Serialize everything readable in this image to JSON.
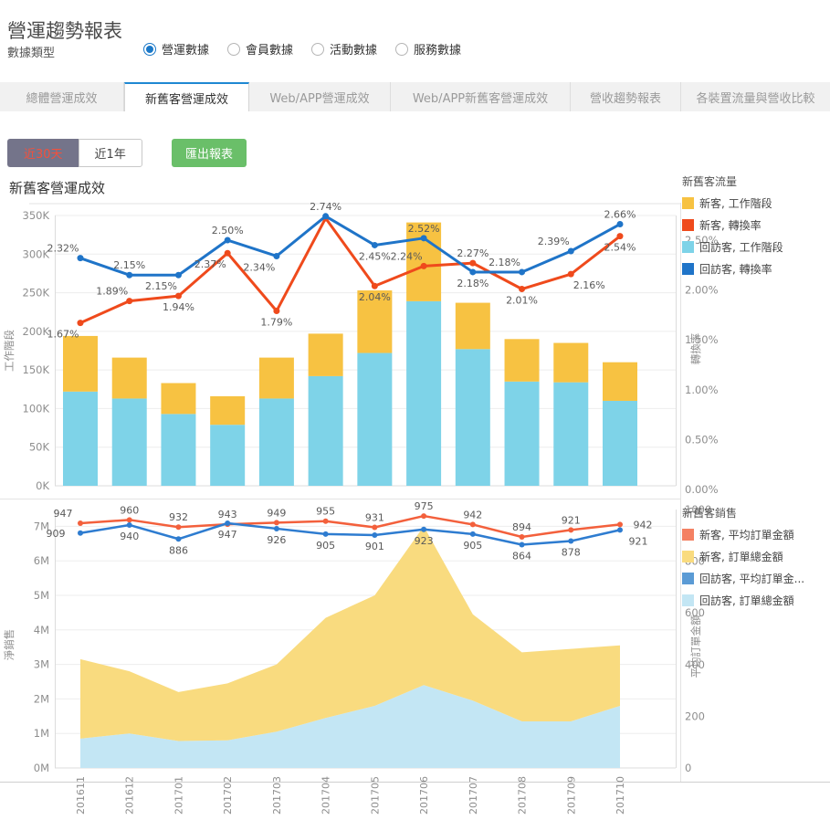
{
  "page": {
    "title": "營運趨勢報表"
  },
  "filter": {
    "label": "數據類型",
    "options": [
      {
        "label": "營運數據",
        "selected": true
      },
      {
        "label": "會員數據",
        "selected": false
      },
      {
        "label": "活動數據",
        "selected": false
      },
      {
        "label": "服務數據",
        "selected": false
      }
    ]
  },
  "tabs": [
    {
      "label": "總體營運成效",
      "active": false
    },
    {
      "label": "新舊客營運成效",
      "active": true
    },
    {
      "label": "Web/APP營運成效",
      "active": false
    },
    {
      "label": "Web/APP新舊客營運成效",
      "active": false
    },
    {
      "label": "營收趨勢報表",
      "active": false
    },
    {
      "label": "各裝置流量與營收比較",
      "active": false
    }
  ],
  "toolbar": {
    "ranges": [
      {
        "label": "近30天",
        "active": true
      },
      {
        "label": "近1年",
        "active": false
      }
    ],
    "export_label": "匯出報表"
  },
  "section_title": "新舊客營運成效",
  "colors": {
    "accent_blue": "#1e88d2",
    "radio_blue": "#1a78c8",
    "button_green": "#6abf69",
    "range_active_bg": "#74748a",
    "range_active_text": "#f4503c",
    "grid": "#ededed",
    "axis_text": "#8e8e8e",
    "data_label_text": "#595959"
  },
  "chart_data": [
    {
      "type": "bar",
      "title": "新舊客流量",
      "categories": [
        "201611",
        "201612",
        "201701",
        "201702",
        "201703",
        "201704",
        "201705",
        "201706",
        "201707",
        "201708",
        "201709",
        "201710"
      ],
      "left_axis": {
        "label": "工作階段",
        "ticks": [
          "0K",
          "50K",
          "100K",
          "150K",
          "200K",
          "250K",
          "300K",
          "350K"
        ],
        "min": 0,
        "max": 350000
      },
      "right_axis": {
        "label": "轉換率",
        "ticks": [
          "0.00%",
          "0.50%",
          "1.00%",
          "1.50%",
          "2.00%",
          "2.50%"
        ],
        "min": 0,
        "max": 2.5
      },
      "series": [
        {
          "name": "回訪客, 工作階段",
          "kind": "bar",
          "color": "#7ed3e8",
          "values_k": [
            122,
            113,
            93,
            79,
            113,
            142,
            172,
            239,
            177,
            135,
            134,
            110
          ]
        },
        {
          "name": "新客, 工作階段",
          "kind": "bar",
          "color": "#f7c242",
          "values_k": [
            72,
            53,
            40,
            37,
            53,
            55,
            81,
            102,
            60,
            55,
            51,
            50
          ]
        },
        {
          "name": "新客, 轉換率",
          "kind": "line",
          "color": "#ef4a1c",
          "values_pct": [
            1.67,
            1.89,
            1.94,
            2.37,
            1.79,
            2.72,
            2.04,
            2.24,
            2.27,
            2.01,
            2.16,
            2.54
          ],
          "labels": [
            "1.67%",
            "1.89%",
            "1.94%",
            "2.37%",
            "1.79%",
            "",
            "2.04%",
            "2.24%",
            "2.27%",
            "2.01%",
            "2.16%",
            "2.54%"
          ],
          "label_pos": [
            "bl",
            "al",
            "b",
            "bl",
            "b",
            "n",
            "b",
            "al",
            "a",
            "b",
            "br",
            "b"
          ]
        },
        {
          "name": "回訪客, 轉換率",
          "kind": "line",
          "color": "#1f74c8",
          "values_pct": [
            2.32,
            2.15,
            2.15,
            2.5,
            2.34,
            2.74,
            2.45,
            2.52,
            2.18,
            2.18,
            2.39,
            2.66
          ],
          "labels": [
            "2.32%",
            "2.15%",
            "2.15%",
            "2.50%",
            "2.34%",
            "2.74%",
            "2.45%",
            "2.52%",
            "2.18%",
            "2.18%",
            "2.39%",
            "2.66%"
          ],
          "label_pos": [
            "al",
            "a",
            "bl",
            "a",
            "bl",
            "a",
            "b",
            "a",
            "b",
            "al",
            "al",
            "a"
          ]
        }
      ],
      "legend": {
        "title": "新舊客流量",
        "items": [
          {
            "label": "新客, 工作階段",
            "color": "#f7c242"
          },
          {
            "label": "新客, 轉換率",
            "color": "#ef4a1c"
          },
          {
            "label": "回訪客, 工作階段",
            "color": "#7ed3e8"
          },
          {
            "label": "回訪客, 轉換率",
            "color": "#1f74c8"
          }
        ]
      }
    },
    {
      "type": "area",
      "title": "新舊客銷售",
      "categories": [
        "201611",
        "201612",
        "201701",
        "201702",
        "201703",
        "201704",
        "201705",
        "201706",
        "201707",
        "201708",
        "201709",
        "201710"
      ],
      "left_axis": {
        "label": "淨銷售",
        "ticks": [
          "0M",
          "1M",
          "2M",
          "3M",
          "4M",
          "5M",
          "6M",
          "7M"
        ],
        "min": 0,
        "max": 7000000
      },
      "right_axis": {
        "label": "平均訂單金額",
        "ticks": [
          "0",
          "200",
          "400",
          "600",
          "800",
          "1000"
        ],
        "min": 0,
        "max": 1000
      },
      "series": [
        {
          "name": "回訪客, 訂單總金額",
          "kind": "area",
          "color": "#c3e6f4",
          "values_m": [
            0.85,
            1,
            0.78,
            0.8,
            1.05,
            1.45,
            1.8,
            2.4,
            1.95,
            1.35,
            1.35,
            1.8
          ]
        },
        {
          "name": "新客, 訂單總金額",
          "kind": "area",
          "color": "#f9db7f",
          "values_m": [
            2.3,
            1.8,
            1.42,
            1.65,
            1.95,
            2.9,
            3.2,
            4.6,
            2.5,
            2,
            2.1,
            1.75
          ]
        },
        {
          "name": "新客, 平均訂單金額",
          "kind": "line",
          "color": "#f3603c",
          "values": [
            947,
            960,
            932,
            943,
            949,
            955,
            931,
            975,
            942,
            894,
            921,
            942
          ],
          "label_pos": [
            "al",
            "a",
            "a",
            "a",
            "a",
            "a",
            "a",
            "a",
            "a",
            "a",
            "a",
            "r"
          ]
        },
        {
          "name": "回訪客, 平均訂單金額",
          "kind": "line",
          "color": "#2e7cd0",
          "values": [
            909,
            940,
            886,
            947,
            926,
            905,
            901,
            923,
            905,
            864,
            878,
            921
          ],
          "label_pos": [
            "l",
            "b",
            "b",
            "b",
            "b",
            "b",
            "b",
            "b",
            "b",
            "b",
            "b",
            "br"
          ]
        }
      ],
      "legend": {
        "title": "新舊客銷售",
        "items": [
          {
            "label": "新客, 平均訂單金額",
            "color": "#f48163"
          },
          {
            "label": "新客, 訂單總金額",
            "color": "#f9db7f"
          },
          {
            "label": "回訪客, 平均訂單金...",
            "color": "#5b9bd5"
          },
          {
            "label": "回訪客, 訂單總金額",
            "color": "#c3e6f4"
          }
        ]
      }
    }
  ]
}
